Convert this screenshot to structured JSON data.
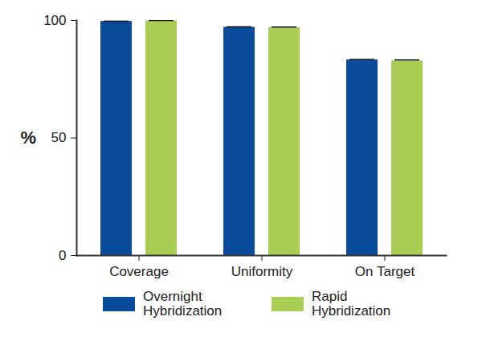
{
  "chart_data": {
    "type": "bar",
    "ylabel": "%",
    "categories": [
      "Coverage",
      "Uniformity",
      "On Target"
    ],
    "series": [
      {
        "name": "Overnight Hybridization",
        "color": "#0a4b9b",
        "values": [
          99.6,
          97.1,
          83.2
        ],
        "errors": [
          0.1,
          0.2,
          0.2
        ]
      },
      {
        "name": "Rapid Hybridization",
        "color": "#a8cf54",
        "values": [
          99.8,
          96.9,
          82.8
        ],
        "errors": [
          0.2,
          0.3,
          0.4
        ]
      }
    ],
    "ylim": [
      0,
      100
    ],
    "yticks": [
      0,
      50,
      100
    ],
    "grid": false,
    "legend": "bottom"
  }
}
